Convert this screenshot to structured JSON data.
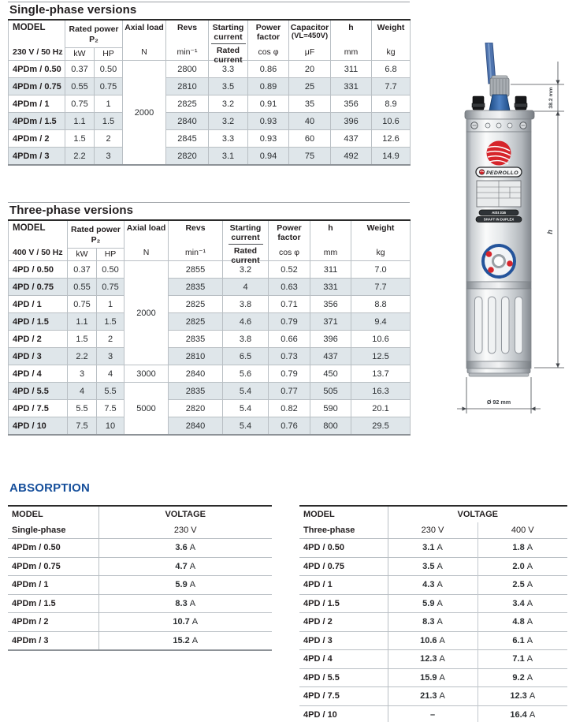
{
  "single_phase": {
    "title": "Single-phase versions",
    "header": {
      "model": "MODEL",
      "voltage": "230 V / 50 Hz",
      "rated_power": "Rated power",
      "p2": "P₂",
      "kw": "kW",
      "hp": "HP",
      "axial": "Axial load",
      "axial_unit": "N",
      "revs": "Revs",
      "revs_unit": "min⁻¹",
      "starting": "Starting current",
      "rated": "Rated current",
      "pf": "Power factor",
      "pf_unit": "cos φ",
      "cap": "Capacitor",
      "cap_note": "(VL=450V)",
      "cap_unit": "μF",
      "h": "h",
      "h_unit": "mm",
      "weight": "Weight",
      "weight_unit": "kg"
    },
    "axial_groups": [
      {
        "start": 0,
        "span": 6,
        "value": "2000"
      }
    ],
    "rows": [
      {
        "model": "4PDm / 0.50",
        "kw": "0.37",
        "hp": "0.50",
        "revs": "2800",
        "start": "3.3",
        "cos": "0.86",
        "uf": "20",
        "h": "311",
        "kg": "6.8"
      },
      {
        "model": "4PDm / 0.75",
        "kw": "0.55",
        "hp": "0.75",
        "revs": "2810",
        "start": "3.5",
        "cos": "0.89",
        "uf": "25",
        "h": "331",
        "kg": "7.7"
      },
      {
        "model": "4PDm / 1",
        "kw": "0.75",
        "hp": "1",
        "revs": "2825",
        "start": "3.2",
        "cos": "0.91",
        "uf": "35",
        "h": "356",
        "kg": "8.9"
      },
      {
        "model": "4PDm / 1.5",
        "kw": "1.1",
        "hp": "1.5",
        "revs": "2840",
        "start": "3.2",
        "cos": "0.93",
        "uf": "40",
        "h": "396",
        "kg": "10.6"
      },
      {
        "model": "4PDm / 2",
        "kw": "1.5",
        "hp": "2",
        "revs": "2845",
        "start": "3.3",
        "cos": "0.93",
        "uf": "60",
        "h": "437",
        "kg": "12.6"
      },
      {
        "model": "4PDm / 3",
        "kw": "2.2",
        "hp": "3",
        "revs": "2820",
        "start": "3.1",
        "cos": "0.94",
        "uf": "75",
        "h": "492",
        "kg": "14.9"
      }
    ]
  },
  "three_phase": {
    "title": "Three-phase versions",
    "header": {
      "model": "MODEL",
      "voltage": "400 V / 50 Hz",
      "rated_power": "Rated power",
      "p2": "P₂",
      "kw": "kW",
      "hp": "HP",
      "axial": "Axial load",
      "axial_unit": "N",
      "revs": "Revs",
      "revs_unit": "min⁻¹",
      "starting": "Starting current",
      "rated": "Rated current",
      "pf": "Power factor",
      "pf_unit": "cos φ",
      "h": "h",
      "h_unit": "mm",
      "weight": "Weight",
      "weight_unit": "kg"
    },
    "axial_groups": [
      {
        "start": 0,
        "span": 6,
        "value": "2000"
      },
      {
        "start": 6,
        "span": 1,
        "value": "3000"
      },
      {
        "start": 7,
        "span": 3,
        "value": "5000"
      }
    ],
    "rows": [
      {
        "model": "4PD / 0.50",
        "kw": "0.37",
        "hp": "0.50",
        "revs": "2855",
        "start": "3.2",
        "cos": "0.52",
        "h": "311",
        "kg": "7.0"
      },
      {
        "model": "4PD / 0.75",
        "kw": "0.55",
        "hp": "0.75",
        "revs": "2835",
        "start": "4",
        "cos": "0.63",
        "h": "331",
        "kg": "7.7"
      },
      {
        "model": "4PD / 1",
        "kw": "0.75",
        "hp": "1",
        "revs": "2825",
        "start": "3.8",
        "cos": "0.71",
        "h": "356",
        "kg": "8.8"
      },
      {
        "model": "4PD / 1.5",
        "kw": "1.1",
        "hp": "1.5",
        "revs": "2825",
        "start": "4.6",
        "cos": "0.79",
        "h": "371",
        "kg": "9.4"
      },
      {
        "model": "4PD / 2",
        "kw": "1.5",
        "hp": "2",
        "revs": "2835",
        "start": "3.8",
        "cos": "0.66",
        "h": "396",
        "kg": "10.6"
      },
      {
        "model": "4PD / 3",
        "kw": "2.2",
        "hp": "3",
        "revs": "2810",
        "start": "6.5",
        "cos": "0.73",
        "h": "437",
        "kg": "12.5"
      },
      {
        "model": "4PD / 4",
        "kw": "3",
        "hp": "4",
        "revs": "2840",
        "start": "5.6",
        "cos": "0.79",
        "h": "450",
        "kg": "13.7"
      },
      {
        "model": "4PD / 5.5",
        "kw": "4",
        "hp": "5.5",
        "revs": "2835",
        "start": "5.4",
        "cos": "0.77",
        "h": "505",
        "kg": "16.3"
      },
      {
        "model": "4PD / 7.5",
        "kw": "5.5",
        "hp": "7.5",
        "revs": "2820",
        "start": "5.4",
        "cos": "0.82",
        "h": "590",
        "kg": "20.1"
      },
      {
        "model": "4PD / 10",
        "kw": "7.5",
        "hp": "10",
        "revs": "2840",
        "start": "5.4",
        "cos": "0.76",
        "h": "800",
        "kg": "29.5"
      }
    ]
  },
  "absorption": {
    "title": "ABSORPTION",
    "single": {
      "model_label": "MODEL",
      "voltage_label": "VOLTAGE",
      "phase_label": "Single-phase",
      "voltage_value": "230 V",
      "rows": [
        {
          "model": "4PDm / 0.50",
          "a": {
            "value": "3.6",
            "unit": "A"
          }
        },
        {
          "model": "4PDm / 0.75",
          "a": {
            "value": "4.7",
            "unit": "A"
          }
        },
        {
          "model": "4PDm / 1",
          "a": {
            "value": "5.9",
            "unit": "A"
          }
        },
        {
          "model": "4PDm / 1.5",
          "a": {
            "value": "8.3",
            "unit": "A"
          }
        },
        {
          "model": "4PDm / 2",
          "a": {
            "value": "10.7",
            "unit": "A"
          }
        },
        {
          "model": "4PDm / 3",
          "a": {
            "value": "15.2",
            "unit": "A"
          }
        }
      ]
    },
    "three": {
      "model_label": "MODEL",
      "voltage_label": "VOLTAGE",
      "phase_label": "Three-phase",
      "v230": "230 V",
      "v400": "400 V",
      "rows": [
        {
          "model": "4PD / 0.50",
          "a230": {
            "value": "3.1",
            "unit": "A"
          },
          "a400": {
            "value": "1.8",
            "unit": "A"
          }
        },
        {
          "model": "4PD / 0.75",
          "a230": {
            "value": "3.5",
            "unit": "A"
          },
          "a400": {
            "value": "2.0",
            "unit": "A"
          }
        },
        {
          "model": "4PD / 1",
          "a230": {
            "value": "4.3",
            "unit": "A"
          },
          "a400": {
            "value": "2.5",
            "unit": "A"
          }
        },
        {
          "model": "4PD / 1.5",
          "a230": {
            "value": "5.9",
            "unit": "A"
          },
          "a400": {
            "value": "3.4",
            "unit": "A"
          }
        },
        {
          "model": "4PD / 2",
          "a230": {
            "value": "8.3",
            "unit": "A"
          },
          "a400": {
            "value": "4.8",
            "unit": "A"
          }
        },
        {
          "model": "4PD / 3",
          "a230": {
            "value": "10.6",
            "unit": "A"
          },
          "a400": {
            "value": "6.1",
            "unit": "A"
          }
        },
        {
          "model": "4PD / 4",
          "a230": {
            "value": "12.3",
            "unit": "A"
          },
          "a400": {
            "value": "7.1",
            "unit": "A"
          }
        },
        {
          "model": "4PD / 5.5",
          "a230": {
            "value": "15.9",
            "unit": "A"
          },
          "a400": {
            "value": "9.2",
            "unit": "A"
          }
        },
        {
          "model": "4PD / 7.5",
          "a230": {
            "value": "21.3",
            "unit": "A"
          },
          "a400": {
            "value": "12.3",
            "unit": "A"
          }
        },
        {
          "model": "4PD / 10",
          "a230": {
            "value": "–",
            "unit": ""
          },
          "a400": {
            "value": "16.4",
            "unit": "A"
          }
        }
      ]
    }
  },
  "drawing": {
    "brand": "PEDROLLO",
    "material_label": "AISI 316",
    "shaft_label": "SHAFT IN DUPLEX",
    "dim_shaft": "38.2 mm",
    "dim_height": "h",
    "dim_diameter": "Ø 92 mm"
  },
  "colors": {
    "accent_blue": "#164f9b",
    "row_shading": "#dfe6ea",
    "logo_red": "#d6252b",
    "cable_blue": "#4f74ae"
  }
}
